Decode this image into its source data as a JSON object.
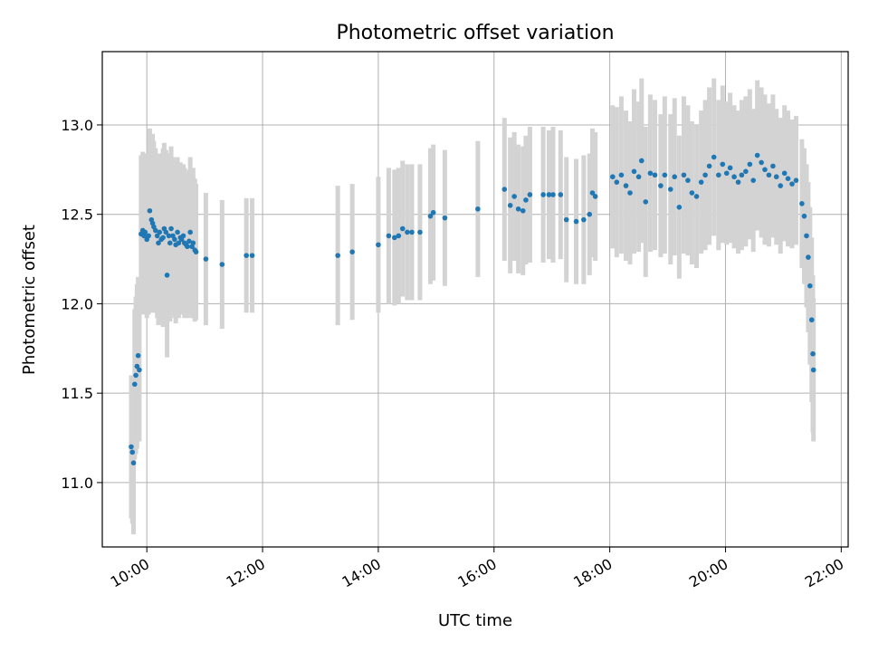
{
  "chart_data": {
    "type": "scatter",
    "title": "Photometric offset variation",
    "xlabel": "UTC time",
    "ylabel": "Photometric offset",
    "x_tick_labels": [
      "10:00",
      "12:00",
      "14:00",
      "16:00",
      "18:00",
      "20:00",
      "22:00"
    ],
    "y_tick_labels": [
      "11.0",
      "11.5",
      "12.0",
      "12.5",
      "13.0"
    ],
    "x_ticks_hours": [
      10,
      12,
      14,
      16,
      18,
      20,
      22
    ],
    "y_ticks": [
      11.0,
      11.5,
      12.0,
      12.5,
      13.0
    ],
    "xlim_hours": [
      9.23,
      22.12
    ],
    "ylim": [
      10.64,
      13.41
    ],
    "grid": true,
    "point_color": "#1f77b4",
    "errorbar_color": "#d3d3d3",
    "series": [
      {
        "x_hours": [
          9.73,
          9.75,
          9.77,
          9.79,
          9.81,
          9.83,
          9.85,
          9.87,
          9.9,
          9.93,
          9.95,
          9.97,
          10.0,
          10.03,
          10.05,
          10.08,
          10.1,
          10.12,
          10.15,
          10.18,
          10.2,
          10.22,
          10.25,
          10.28,
          10.3,
          10.33,
          10.35,
          10.38,
          10.4,
          10.42,
          10.45,
          10.48,
          10.5,
          10.53,
          10.55,
          10.58,
          10.6,
          10.63,
          10.65,
          10.68,
          10.7,
          10.73,
          10.75,
          10.78,
          10.8,
          10.83,
          10.85,
          11.02,
          11.3,
          11.72,
          11.82,
          13.3,
          13.55,
          14.0,
          14.18,
          14.28,
          14.35,
          14.42,
          14.5,
          14.58,
          14.72,
          14.9,
          14.95,
          15.15,
          15.72,
          16.18,
          16.28,
          16.35,
          16.42,
          16.5,
          16.55,
          16.62,
          16.85,
          16.95,
          17.02,
          17.15,
          17.25,
          17.42,
          17.55,
          17.65,
          17.7,
          17.75,
          18.05,
          18.12,
          18.2,
          18.28,
          18.35,
          18.42,
          18.5,
          18.55,
          18.62,
          18.7,
          18.78,
          18.88,
          18.95,
          19.05,
          19.12,
          19.2,
          19.28,
          19.35,
          19.42,
          19.5,
          19.58,
          19.65,
          19.72,
          19.8,
          19.88,
          19.95,
          20.02,
          20.08,
          20.15,
          20.22,
          20.28,
          20.35,
          20.42,
          20.48,
          20.55,
          20.62,
          20.68,
          20.75,
          20.82,
          20.88,
          20.95,
          21.02,
          21.08,
          21.15,
          21.22,
          21.32,
          21.36,
          21.4,
          21.43,
          21.46,
          21.49,
          21.51,
          21.52
        ],
        "y": [
          11.2,
          11.17,
          11.11,
          11.55,
          11.6,
          11.65,
          11.71,
          11.63,
          12.39,
          12.41,
          12.38,
          12.4,
          12.36,
          12.38,
          12.52,
          12.47,
          12.45,
          12.43,
          12.41,
          12.38,
          12.34,
          12.4,
          12.36,
          12.37,
          12.42,
          12.4,
          12.16,
          12.38,
          12.34,
          12.42,
          12.38,
          12.36,
          12.33,
          12.4,
          12.34,
          12.37,
          12.36,
          12.38,
          12.34,
          12.33,
          12.32,
          12.35,
          12.4,
          12.32,
          12.34,
          12.3,
          12.29,
          12.25,
          12.22,
          12.27,
          12.27,
          12.27,
          12.29,
          12.33,
          12.38,
          12.37,
          12.38,
          12.42,
          12.4,
          12.4,
          12.4,
          12.49,
          12.51,
          12.48,
          12.53,
          12.64,
          12.55,
          12.6,
          12.53,
          12.52,
          12.58,
          12.61,
          12.61,
          12.61,
          12.61,
          12.61,
          12.47,
          12.46,
          12.47,
          12.5,
          12.62,
          12.6,
          12.71,
          12.68,
          12.72,
          12.66,
          12.62,
          12.74,
          12.71,
          12.8,
          12.57,
          12.73,
          12.72,
          12.66,
          12.72,
          12.64,
          12.71,
          12.54,
          12.72,
          12.69,
          12.62,
          12.6,
          12.68,
          12.72,
          12.77,
          12.82,
          12.72,
          12.78,
          12.73,
          12.76,
          12.71,
          12.68,
          12.72,
          12.74,
          12.78,
          12.69,
          12.83,
          12.79,
          12.75,
          12.72,
          12.77,
          12.71,
          12.66,
          12.73,
          12.7,
          12.67,
          12.69,
          12.56,
          12.49,
          12.38,
          12.26,
          12.1,
          11.91,
          11.72,
          11.63
        ],
        "err": [
          0.4,
          0.4,
          0.4,
          0.42,
          0.44,
          0.46,
          0.44,
          0.4,
          0.44,
          0.44,
          0.44,
          0.44,
          0.44,
          0.44,
          0.46,
          0.48,
          0.5,
          0.48,
          0.46,
          0.46,
          0.46,
          0.44,
          0.46,
          0.5,
          0.48,
          0.46,
          0.46,
          0.46,
          0.44,
          0.46,
          0.44,
          0.44,
          0.44,
          0.42,
          0.42,
          0.42,
          0.42,
          0.4,
          0.42,
          0.4,
          0.4,
          0.4,
          0.42,
          0.4,
          0.42,
          0.4,
          0.38,
          0.37,
          0.36,
          0.32,
          0.32,
          0.39,
          0.38,
          0.38,
          0.38,
          0.38,
          0.38,
          0.38,
          0.38,
          0.38,
          0.38,
          0.38,
          0.38,
          0.38,
          0.38,
          0.4,
          0.38,
          0.36,
          0.36,
          0.36,
          0.36,
          0.38,
          0.38,
          0.36,
          0.38,
          0.36,
          0.35,
          0.35,
          0.36,
          0.34,
          0.36,
          0.36,
          0.4,
          0.42,
          0.44,
          0.42,
          0.4,
          0.46,
          0.42,
          0.46,
          0.42,
          0.44,
          0.42,
          0.4,
          0.44,
          0.42,
          0.44,
          0.4,
          0.44,
          0.42,
          0.4,
          0.4,
          0.4,
          0.42,
          0.44,
          0.44,
          0.42,
          0.44,
          0.4,
          0.42,
          0.4,
          0.4,
          0.42,
          0.42,
          0.42,
          0.4,
          0.42,
          0.42,
          0.42,
          0.4,
          0.4,
          0.38,
          0.38,
          0.38,
          0.38,
          0.36,
          0.36,
          0.36,
          0.38,
          0.4,
          0.42,
          0.44,
          0.46,
          0.44,
          0.4
        ]
      }
    ]
  }
}
